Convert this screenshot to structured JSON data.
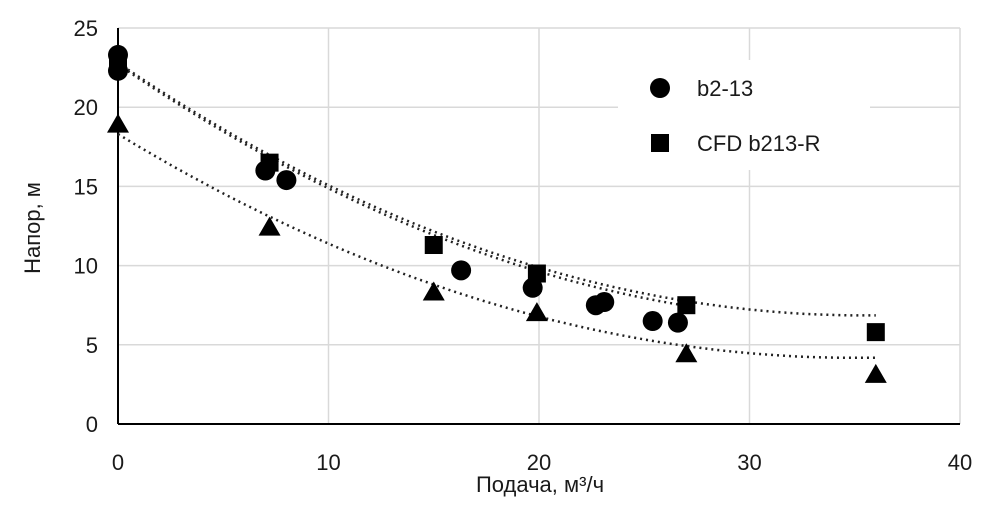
{
  "chart_data": {
    "type": "scatter",
    "title": "",
    "xlabel": "Подача, м³/ч",
    "ylabel": "Напор, м",
    "xlim": [
      0,
      40
    ],
    "ylim": [
      0,
      25
    ],
    "x_ticks": [
      0,
      10,
      20,
      30,
      40
    ],
    "y_ticks": [
      0,
      5,
      10,
      15,
      20,
      25
    ],
    "grid": true,
    "legend_position": "top-right",
    "colors": {
      "markers": "#000000",
      "grid": "#d9d9d9",
      "axis": "#000000",
      "trend": "#222222"
    },
    "series": [
      {
        "name": "b2-13",
        "marker": "circle",
        "x": [
          0,
          0,
          7.0,
          8.0,
          16.3,
          19.7,
          22.7,
          23.1,
          25.4,
          26.6
        ],
        "y": [
          23.3,
          22.3,
          16.0,
          15.4,
          9.7,
          8.6,
          7.5,
          7.7,
          6.5,
          6.4
        ],
        "trend": [
          22.7,
          -0.91,
          0.0128
        ]
      },
      {
        "name": "CFD b213-R",
        "marker": "square",
        "x": [
          0,
          7.2,
          15.0,
          19.9,
          27.0,
          36.0
        ],
        "y": [
          22.8,
          16.5,
          11.3,
          9.5,
          7.5,
          5.8
        ],
        "trend": [
          22.8,
          -0.9,
          0.0127
        ]
      },
      {
        "marker": "triangle",
        "x": [
          0,
          7.2,
          15.0,
          19.9,
          27.0,
          36.0
        ],
        "y": [
          18.9,
          12.4,
          8.3,
          7.0,
          4.4,
          3.1
        ],
        "trend": [
          18.3,
          -0.806,
          0.0115
        ]
      }
    ]
  }
}
